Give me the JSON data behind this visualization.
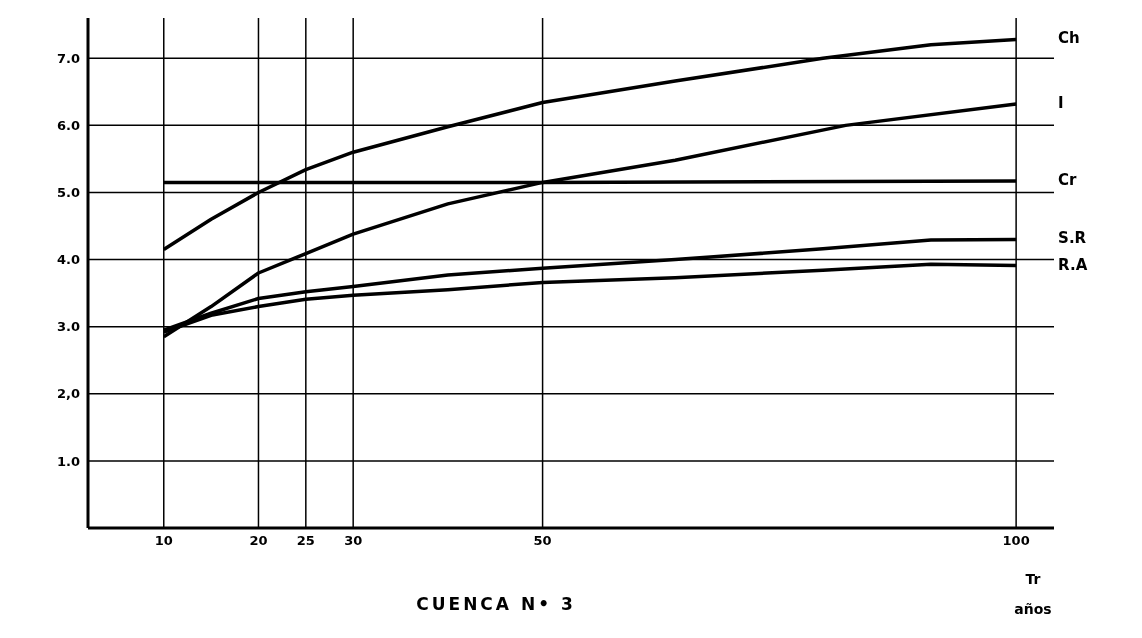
{
  "chart_data": {
    "type": "line",
    "title": "CUENCA N• 3",
    "xlabel": "Tr años",
    "xlim": [
      2,
      104
    ],
    "xticks": [
      10,
      20,
      25,
      30,
      50,
      100
    ],
    "ylim": [
      0,
      7.6
    ],
    "yticks": [
      {
        "value": 1,
        "label": "1.0"
      },
      {
        "value": 2,
        "label": "2,0"
      },
      {
        "value": 3,
        "label": "3.0"
      },
      {
        "value": 4,
        "label": "4.0"
      },
      {
        "value": 5,
        "label": "5.0"
      },
      {
        "value": 6,
        "label": "6.0"
      },
      {
        "value": 7,
        "label": "7.0"
      }
    ],
    "grid": true,
    "marker": "none",
    "line_style": "solid",
    "series": [
      {
        "name": "Ch",
        "color": "#000000",
        "x": [
          10,
          15,
          20,
          25,
          30,
          40,
          50,
          64,
          79.6,
          91,
          100
        ],
        "values": [
          4.15,
          4.6,
          5.0,
          5.34,
          5.6,
          5.98,
          6.34,
          6.66,
          7.0,
          7.2,
          7.28
        ]
      },
      {
        "name": "I",
        "color": "#000000",
        "x": [
          10,
          15,
          20,
          25,
          30,
          40,
          50,
          64,
          82,
          100
        ],
        "values": [
          2.85,
          3.3,
          3.8,
          4.09,
          4.38,
          4.83,
          5.15,
          5.48,
          6.0,
          6.32
        ]
      },
      {
        "name": "Cr",
        "color": "#000000",
        "x": [
          10,
          50,
          100
        ],
        "values": [
          5.15,
          5.15,
          5.17
        ]
      },
      {
        "name": "S.R",
        "color": "#000000",
        "x": [
          10,
          15,
          20,
          25,
          30,
          40,
          50,
          64,
          79.6,
          91,
          100
        ],
        "values": [
          2.95,
          3.2,
          3.42,
          3.52,
          3.6,
          3.77,
          3.87,
          4.0,
          4.16,
          4.29,
          4.3
        ]
      },
      {
        "name": "R.A",
        "color": "#000000",
        "x": [
          10,
          15,
          20,
          25,
          30,
          40,
          50,
          64,
          79.6,
          91,
          100
        ],
        "values": [
          2.92,
          3.17,
          3.3,
          3.41,
          3.47,
          3.55,
          3.66,
          3.73,
          3.84,
          3.93,
          3.91
        ]
      }
    ]
  }
}
